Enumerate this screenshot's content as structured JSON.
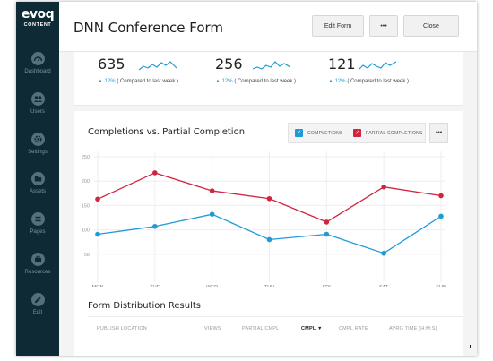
{
  "brand": {
    "logo": "evoq",
    "subtitle": "CONTENT"
  },
  "sidebar": {
    "items": [
      {
        "label": "Dashboard",
        "icon": "speedometer-icon"
      },
      {
        "label": "Users",
        "icon": "users-icon"
      },
      {
        "label": "Settings",
        "icon": "gear-icon"
      },
      {
        "label": "Assets",
        "icon": "folder-icon"
      },
      {
        "label": "Pages",
        "icon": "pages-icon"
      },
      {
        "label": "Resources",
        "icon": "briefcase-icon"
      },
      {
        "label": "Edit",
        "icon": "pencil-icon"
      }
    ]
  },
  "header": {
    "title": "DNN Conference Form",
    "edit_form": "Edit Form",
    "more": "•••",
    "close": "Close"
  },
  "stats": [
    {
      "value": "635",
      "change": "12%",
      "comparison": "( Compared to last week )"
    },
    {
      "value": "256",
      "change": "12%",
      "comparison": "( Compared to last week )"
    },
    {
      "value": "121",
      "change": "12%",
      "comparison": "( Compared to last week )"
    }
  ],
  "chart": {
    "title": "Completions vs. Partial Completion",
    "legend": {
      "completions": "COMPLETIONS",
      "partial": "PARTIAL COMPLETIONS"
    },
    "more": "•••"
  },
  "chart_data": {
    "type": "line",
    "categories": [
      "MON",
      "TUE",
      "WED",
      "THU",
      "FRI",
      "SAT",
      "SUN"
    ],
    "y_ticks": [
      "250",
      "200",
      "150",
      "100",
      "50"
    ],
    "ylim": [
      0,
      250
    ],
    "grid": true,
    "series": [
      {
        "name": "PARTIAL COMPLETIONS",
        "color": "#d0243f",
        "values": [
          163,
          217,
          180,
          164,
          116,
          188,
          170
        ]
      },
      {
        "name": "COMPLETIONS",
        "color": "#1e9bd7",
        "values": [
          91,
          107,
          132,
          80,
          91,
          52,
          128
        ]
      }
    ]
  },
  "distribution": {
    "title": "Form Distribution Results",
    "columns": [
      "PUBLISH LOCATION",
      "VIEWS",
      "PARTIAL CMPL",
      "CMPL",
      "CMPL RATE",
      "AVRG TIME (H:M:S)"
    ],
    "sort_indicator": "▼"
  },
  "colors": {
    "sidebar": "#0d2a35",
    "accent_blue": "#1e9bd7",
    "accent_red": "#d0243f"
  }
}
